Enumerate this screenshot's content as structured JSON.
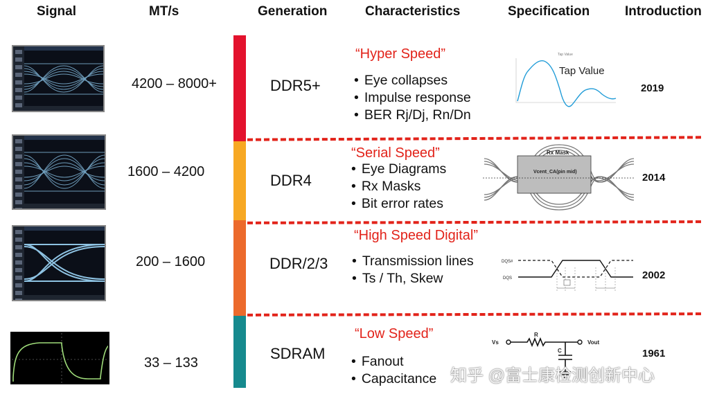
{
  "headers": {
    "signal": "Signal",
    "mts": "MT/s",
    "generation": "Generation",
    "characteristics": "Characteristics",
    "specification": "Specification",
    "introduction": "Introduction"
  },
  "rows": [
    {
      "mts": "4200 – 8000+",
      "generation": "DDR5+",
      "speed": "“Hyper Speed”",
      "bullets": [
        "Eye collapses",
        "Impulse response",
        "BER Rj/Dj, Rn/Dn"
      ],
      "year": "2019",
      "bar_color": "#e3122d"
    },
    {
      "mts": "1600 – 4200",
      "generation": "DDR4",
      "speed": "“Serial Speed”",
      "bullets": [
        "Eye Diagrams",
        "Rx Masks",
        "Bit error rates"
      ],
      "year": "2014",
      "bar_color": "#f7a823"
    },
    {
      "mts": "200 – 1600",
      "generation": "DDR/2/3",
      "speed": "“High Speed Digital”",
      "bullets": [
        "Transmission lines",
        "Ts / Th, Skew"
      ],
      "year": "2002",
      "bar_color": "#ec6a2c"
    },
    {
      "mts": "33 – 133",
      "generation": "SDRAM",
      "speed": "“Low Speed”",
      "bullets": [
        "Fanout",
        "Capacitance"
      ],
      "year": "1961",
      "bar_color": "#168a8e"
    }
  ],
  "spec": {
    "tap_title": "Tap Value",
    "tap_label": "Tap Value",
    "rx_mask_label": "Rx Mask",
    "vcent_label": "Vcent_CA(pin mid)",
    "dqs_top": "DQS#",
    "dqs_bottom": "DQS",
    "rc_r": "R",
    "rc_c": "C",
    "rc_vs": "Vs",
    "rc_vout": "Vout"
  },
  "watermark": "知乎 @富士康检测创新中心",
  "colors": {
    "accent_red": "#e2231a",
    "eye_blue": "#7fb4d6",
    "sdram_green": "#9fdc7a"
  }
}
